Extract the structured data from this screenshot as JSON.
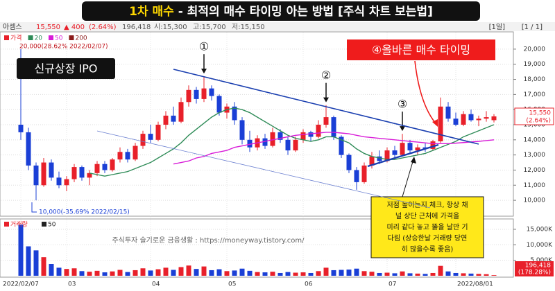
{
  "banner": {
    "highlight": "1차 매수",
    "rest": " - 최적의 매수 타이밍 아는 방법 [주식 차트 보는법]"
  },
  "info": {
    "name": "아셈스",
    "price": "15,550",
    "change": "▲ 400",
    "change_pct": "(2.64%)",
    "volume": "196,418",
    "open": "시:15,300",
    "high": "고:15,700",
    "low": "저:15,150",
    "period": "[1일]",
    "pages": "[1 / 1]"
  },
  "chart_data": {
    "type": "candlestick",
    "price_name": "가격",
    "up_color": "#e8202a",
    "down_color": "#1a3fd6",
    "ohlc": [
      [
        15000,
        20000,
        14000,
        14500
      ],
      [
        14500,
        14800,
        12000,
        12300
      ],
      [
        12300,
        12500,
        10000,
        11000
      ],
      [
        11000,
        12800,
        10900,
        12500
      ],
      [
        12500,
        12700,
        11300,
        11500
      ],
      [
        11500,
        11900,
        10800,
        11000
      ],
      [
        11000,
        11600,
        10600,
        11400
      ],
      [
        11400,
        12400,
        11200,
        12200
      ],
      [
        12200,
        12300,
        11300,
        11500
      ],
      [
        11500,
        12000,
        11000,
        11800
      ],
      [
        11800,
        12600,
        11600,
        12400
      ],
      [
        12400,
        12600,
        11800,
        12000
      ],
      [
        12000,
        12800,
        11900,
        12700
      ],
      [
        12700,
        13500,
        12500,
        13200
      ],
      [
        13200,
        13400,
        12500,
        12700
      ],
      [
        12700,
        13800,
        12600,
        13600
      ],
      [
        13600,
        14600,
        13400,
        14400
      ],
      [
        14400,
        15000,
        13800,
        14000
      ],
      [
        14000,
        15200,
        13900,
        15000
      ],
      [
        15000,
        15900,
        14700,
        15600
      ],
      [
        15600,
        16200,
        15000,
        15200
      ],
      [
        15200,
        16800,
        15100,
        16500
      ],
      [
        16500,
        17600,
        16200,
        17300
      ],
      [
        17300,
        17500,
        16400,
        16700
      ],
      [
        16700,
        18200,
        16500,
        17400
      ],
      [
        17400,
        17600,
        16600,
        16900
      ],
      [
        16900,
        17000,
        15600,
        15800
      ],
      [
        15800,
        16400,
        15400,
        16200
      ],
      [
        16200,
        16500,
        15000,
        15300
      ],
      [
        15300,
        15500,
        13700,
        14000
      ],
      [
        14000,
        14600,
        13200,
        13500
      ],
      [
        13500,
        14300,
        13300,
        14100
      ],
      [
        14100,
        14400,
        13400,
        13600
      ],
      [
        13600,
        14800,
        13500,
        14500
      ],
      [
        14500,
        14700,
        13800,
        14000
      ],
      [
        14000,
        14200,
        13000,
        13300
      ],
      [
        13300,
        14200,
        13200,
        14000
      ],
      [
        14000,
        14700,
        13800,
        14500
      ],
      [
        14500,
        14600,
        13900,
        14200
      ],
      [
        14200,
        15300,
        14100,
        15000
      ],
      [
        15000,
        16300,
        14800,
        15500
      ],
      [
        15500,
        15600,
        14000,
        14200
      ],
      [
        14200,
        14300,
        12800,
        13000
      ],
      [
        13000,
        13100,
        11800,
        12000
      ],
      [
        12000,
        12200,
        10700,
        11200
      ],
      [
        11200,
        12500,
        11100,
        12300
      ],
      [
        12300,
        13200,
        12100,
        12900
      ],
      [
        12900,
        13300,
        12400,
        12600
      ],
      [
        12600,
        13500,
        12500,
        13300
      ],
      [
        13300,
        13600,
        12800,
        13000
      ],
      [
        13000,
        14400,
        12900,
        13800
      ],
      [
        13800,
        14000,
        13100,
        13300
      ],
      [
        13300,
        13700,
        13000,
        13500
      ],
      [
        13500,
        13800,
        13200,
        13400
      ],
      [
        13400,
        14000,
        13300,
        13900
      ],
      [
        13900,
        16800,
        13800,
        16200
      ],
      [
        16200,
        16500,
        15200,
        15400
      ],
      [
        15400,
        15800,
        14900,
        15000
      ],
      [
        15000,
        15900,
        14900,
        15700
      ],
      [
        15700,
        16000,
        15200,
        15300
      ],
      [
        15300,
        15600,
        14900,
        15400
      ],
      [
        15400,
        15900,
        15200,
        15500
      ],
      [
        15300,
        15700,
        15150,
        15550
      ]
    ],
    "series": [
      {
        "name": "20",
        "color": "#2e8b57",
        "values": [
          null,
          null,
          null,
          null,
          null,
          null,
          null,
          null,
          null,
          11800,
          11700,
          11600,
          11700,
          11800,
          11900,
          12100,
          12300,
          12500,
          12800,
          13100,
          13400,
          13800,
          14300,
          14700,
          15100,
          15500,
          15800,
          16000,
          16100,
          16000,
          15800,
          15500,
          15200,
          14900,
          14600,
          14300,
          14100,
          14000,
          13900,
          14000,
          14200,
          14200,
          14000,
          13800,
          13400,
          13100,
          12900,
          12800,
          12700,
          12700,
          12800,
          12900,
          13000,
          13100,
          13300,
          13500,
          13700,
          13900,
          14200,
          14400,
          14600,
          14800,
          15000
        ]
      },
      {
        "name": "50",
        "color": "#d81bd8",
        "values": [
          null,
          null,
          null,
          null,
          null,
          null,
          null,
          null,
          null,
          null,
          null,
          null,
          null,
          null,
          null,
          null,
          null,
          null,
          null,
          null,
          12400,
          12500,
          12600,
          12800,
          12900,
          13100,
          13200,
          13300,
          13500,
          13600,
          13700,
          13800,
          13900,
          14000,
          14100,
          14200,
          14300,
          14350,
          14400,
          14450,
          14500,
          14500,
          14450,
          14400,
          14300,
          14200,
          14150,
          14100,
          14050,
          14000,
          13950,
          13900,
          13850,
          13800,
          13750,
          13750,
          13750,
          13780,
          13820,
          13860,
          13900,
          13950,
          14000
        ]
      }
    ],
    "extra_legend": {
      "name": "200",
      "color": "#8b1a1a"
    },
    "ylim": [
      9500,
      20500
    ],
    "yticks": [
      {
        "value": 10000,
        "label": "10,000"
      },
      {
        "value": 11000,
        "label": "11,000"
      },
      {
        "value": 12000,
        "label": "12,000"
      },
      {
        "value": 13000,
        "label": "13,000"
      },
      {
        "value": 14000,
        "label": "14,000"
      },
      {
        "value": 15000,
        "label": "15,000"
      },
      {
        "value": 16000,
        "label": "16,000"
      },
      {
        "value": 17000,
        "label": "17,000"
      },
      {
        "value": 18000,
        "label": "18,000"
      },
      {
        "value": 19000,
        "label": "19,000"
      },
      {
        "value": 20000,
        "label": "20,000"
      }
    ],
    "xticks": [
      {
        "value": 0,
        "label": "2022/02/07"
      },
      {
        "value": 6,
        "label": "03"
      },
      {
        "value": 17,
        "label": "04"
      },
      {
        "value": 27,
        "label": "05"
      },
      {
        "value": 37,
        "label": "06"
      },
      {
        "value": 48,
        "label": "07"
      },
      {
        "value": 57,
        "label": "2022/08/01"
      }
    ],
    "grid": true,
    "volume_name": "거래량",
    "volume_ma_name": "50",
    "volume": [
      16500000,
      9500000,
      8200000,
      6000000,
      3800000,
      2600000,
      2200000,
      2400000,
      1500000,
      1300000,
      1600000,
      1100000,
      1400000,
      1900000,
      1200000,
      1800000,
      2400000,
      1700000,
      2100000,
      2600000,
      1900000,
      2800000,
      3300000,
      2200000,
      3000000,
      1800000,
      2100000,
      1500000,
      1700000,
      2300000,
      1600000,
      1200000,
      1100000,
      1300000,
      900000,
      1200000,
      1000000,
      1100000,
      900000,
      1500000,
      2600000,
      1800000,
      1900000,
      2000000,
      2300000,
      1500000,
      1300000,
      900000,
      1000000,
      800000,
      1400000,
      800000,
      700000,
      600000,
      900000,
      3200000,
      1400000,
      900000,
      800000,
      700000,
      600000,
      500000,
      196418
    ],
    "volume_ylim": [
      0,
      17000000
    ],
    "volume_ticks": [
      {
        "value": 5000000,
        "label": "5,000K"
      },
      {
        "value": 10000000,
        "label": "10,000K"
      },
      {
        "value": 15000000,
        "label": "15,000K"
      }
    ],
    "max_label": "20,000(28.62% 2022/02/07)",
    "min_label": "10,000(-35.69% 2022/02/15)",
    "last_price_label": "15,550",
    "last_change_label": "(2.64%)",
    "last_volume_label": "196,418",
    "volume_change_label": "(178.28%)",
    "ipo_label": "신규상장 IPO",
    "markers": [
      "①",
      "②",
      "③"
    ],
    "callout": "④올바른 매수 타이밍",
    "note": [
      "저점 높이는지 체크, 항상 채",
      "널 상단 근처에 가격을",
      "미리 같다 놓고 뚫을 날만 기",
      "다림 (상승한날 거래량 당연",
      "히 많을수록 좋음)"
    ],
    "watermark": "주식투자 슬기로운 금융생활 : https://moneyway.tistory.com/"
  }
}
